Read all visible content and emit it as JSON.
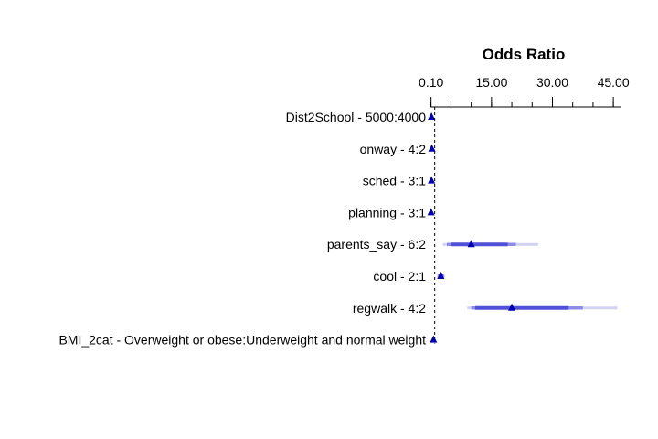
{
  "chart_data": {
    "type": "forest",
    "title": "Odds Ratio",
    "x_ticks": [
      0.1,
      15,
      30,
      45
    ],
    "x_tick_labels": [
      "0.10",
      "15.00",
      "30.00",
      "45.00"
    ],
    "xlim": [
      -0.5,
      47
    ],
    "reference_line": 1,
    "colors": {
      "point": "#0000aa",
      "ci_90": "#5050d8",
      "ci_95": "#8c8ce6",
      "ci_99": "#d2d2f4",
      "axis": "#000000"
    },
    "rows": [
      {
        "label": "Dist2School - 5000:4000",
        "or": 0.2,
        "ci_90": [
          0.18,
          0.24
        ],
        "ci_95": [
          0.17,
          0.25
        ],
        "ci_99": [
          0.15,
          0.27
        ]
      },
      {
        "label": "onway - 4:2",
        "or": 0.3,
        "ci_90": [
          0.25,
          0.35
        ],
        "ci_95": [
          0.22,
          0.38
        ],
        "ci_99": [
          0.2,
          0.42
        ]
      },
      {
        "label": "sched - 3:1",
        "or": 0.2,
        "ci_90": [
          0.17,
          0.24
        ],
        "ci_95": [
          0.16,
          0.26
        ],
        "ci_99": [
          0.14,
          0.28
        ]
      },
      {
        "label": "planning - 3:1",
        "or": 0.1,
        "ci_90": [
          0.08,
          0.13
        ],
        "ci_95": [
          0.07,
          0.14
        ],
        "ci_99": [
          0.06,
          0.16
        ]
      },
      {
        "label": "parents_say - 6:2",
        "or": 10,
        "ci_90": [
          5,
          19
        ],
        "ci_95": [
          4,
          21
        ],
        "ci_99": [
          3,
          26.5
        ]
      },
      {
        "label": "cool - 2:1",
        "or": 2.5,
        "ci_90": [
          1.9,
          3.1
        ],
        "ci_95": [
          1.8,
          3.3
        ],
        "ci_99": [
          1.6,
          3.6
        ]
      },
      {
        "label": "regwalk - 4:2",
        "or": 20,
        "ci_90": [
          11,
          34
        ],
        "ci_95": [
          10,
          37.5
        ],
        "ci_99": [
          9,
          46
        ]
      },
      {
        "label": "BMI_2cat - Overweight or obese:Underweight and normal weight",
        "or": 0.7,
        "ci_90": [
          0.6,
          0.8
        ],
        "ci_95": [
          0.55,
          0.85
        ],
        "ci_99": [
          0.5,
          0.9
        ]
      }
    ]
  }
}
